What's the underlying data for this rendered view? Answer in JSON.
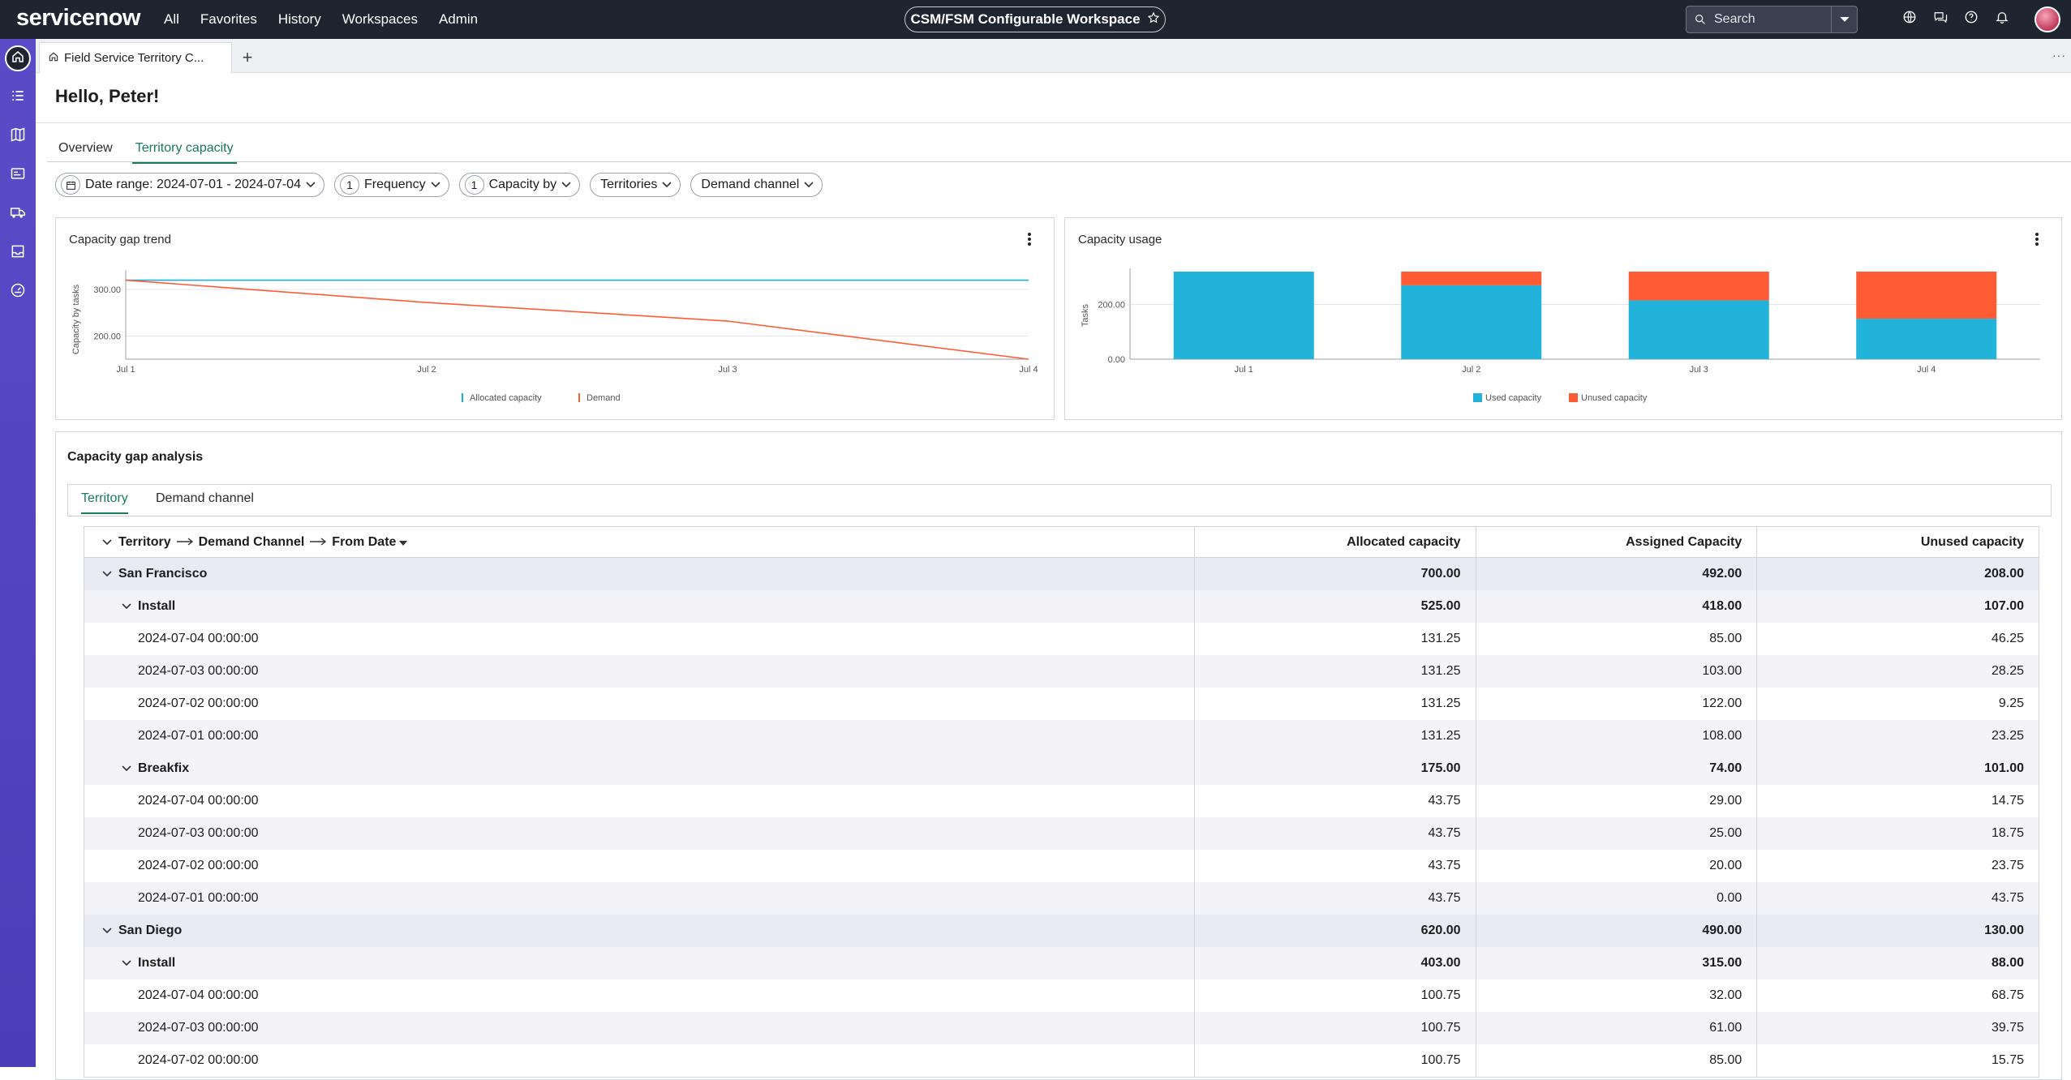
{
  "topbar": {
    "logo": "servicenow",
    "nav": [
      "All",
      "Favorites",
      "History",
      "Workspaces",
      "Admin"
    ],
    "workspace": "CSM/FSM Configurable Workspace",
    "search_placeholder": "Search"
  },
  "tabstrip": {
    "doc_tab": "Field Service Territory C..."
  },
  "page": {
    "greeting": "Hello, Peter!",
    "tabs": [
      "Overview",
      "Territory capacity"
    ],
    "active_tab": "Territory capacity"
  },
  "filters": {
    "date_range": "Date range: 2024-07-01 - 2024-07-04",
    "frequency_count": "1",
    "frequency": "Frequency",
    "capacity_count": "1",
    "capacity_by": "Capacity by",
    "territories": "Territories",
    "demand_channel": "Demand channel"
  },
  "gap_trend": {
    "title": "Capacity gap trend",
    "chart_data": {
      "type": "line",
      "categories": [
        "Jul 1",
        "Jul 2",
        "Jul 3",
        "Jul 4"
      ],
      "ylabel": "Capacity by tasks",
      "yticks": [
        "300.00",
        "200.00"
      ],
      "ylim": [
        150,
        335
      ],
      "series": [
        {
          "name": "Allocated capacity",
          "color": "#1bb0d8",
          "values": [
            320,
            320,
            320,
            320
          ]
        },
        {
          "name": "Demand",
          "color": "#ff5b35",
          "values": [
            320,
            272,
            232,
            150
          ]
        }
      ],
      "legend": "bottom"
    }
  },
  "usage": {
    "title": "Capacity usage",
    "chart_data": {
      "type": "bar",
      "stacked": true,
      "categories": [
        "Jul 1",
        "Jul 2",
        "Jul 3",
        "Jul 4"
      ],
      "ylabel": "Tasks",
      "yticks": [
        "200.00",
        "0.00"
      ],
      "ylim": [
        0,
        320
      ],
      "series": [
        {
          "name": "Used capacity",
          "color": "#21b3d9",
          "values": [
            320,
            270,
            215,
            148
          ]
        },
        {
          "name": "Unused capacity",
          "color": "#ff5b35",
          "values": [
            0,
            50,
            105,
            172
          ]
        }
      ],
      "legend": "bottom"
    }
  },
  "gap_analysis": {
    "title": "Capacity gap analysis",
    "subtabs": [
      "Territory",
      "Demand channel"
    ],
    "header": {
      "group_a": "Territory",
      "group_b": "Demand Channel",
      "group_c": "From Date",
      "col1": "Allocated capacity",
      "col2": "Assigned Capacity",
      "col3": "Unused capacity"
    },
    "rows": [
      {
        "level": 1,
        "label": "San Francisco",
        "a": "700.00",
        "b": "492.00",
        "c": "208.00"
      },
      {
        "level": 2,
        "label": "Install",
        "a": "525.00",
        "b": "418.00",
        "c": "107.00"
      },
      {
        "level": 3,
        "label": "2024-07-04 00:00:00",
        "a": "131.25",
        "b": "85.00",
        "c": "46.25"
      },
      {
        "level": 3,
        "label": "2024-07-03 00:00:00",
        "a": "131.25",
        "b": "103.00",
        "c": "28.25"
      },
      {
        "level": 3,
        "label": "2024-07-02 00:00:00",
        "a": "131.25",
        "b": "122.00",
        "c": "9.25"
      },
      {
        "level": 3,
        "label": "2024-07-01 00:00:00",
        "a": "131.25",
        "b": "108.00",
        "c": "23.25"
      },
      {
        "level": 2,
        "label": "Breakfix",
        "a": "175.00",
        "b": "74.00",
        "c": "101.00"
      },
      {
        "level": 3,
        "label": "2024-07-04 00:00:00",
        "a": "43.75",
        "b": "29.00",
        "c": "14.75"
      },
      {
        "level": 3,
        "label": "2024-07-03 00:00:00",
        "a": "43.75",
        "b": "25.00",
        "c": "18.75"
      },
      {
        "level": 3,
        "label": "2024-07-02 00:00:00",
        "a": "43.75",
        "b": "20.00",
        "c": "23.75"
      },
      {
        "level": 3,
        "label": "2024-07-01 00:00:00",
        "a": "43.75",
        "b": "0.00",
        "c": "43.75"
      },
      {
        "level": 1,
        "label": "San Diego",
        "a": "620.00",
        "b": "490.00",
        "c": "130.00"
      },
      {
        "level": 2,
        "label": "Install",
        "a": "403.00",
        "b": "315.00",
        "c": "88.00"
      },
      {
        "level": 3,
        "label": "2024-07-04 00:00:00",
        "a": "100.75",
        "b": "32.00",
        "c": "68.75"
      },
      {
        "level": 3,
        "label": "2024-07-03 00:00:00",
        "a": "100.75",
        "b": "61.00",
        "c": "39.75"
      },
      {
        "level": 3,
        "label": "2024-07-02 00:00:00",
        "a": "100.75",
        "b": "85.00",
        "c": "15.75"
      }
    ]
  }
}
